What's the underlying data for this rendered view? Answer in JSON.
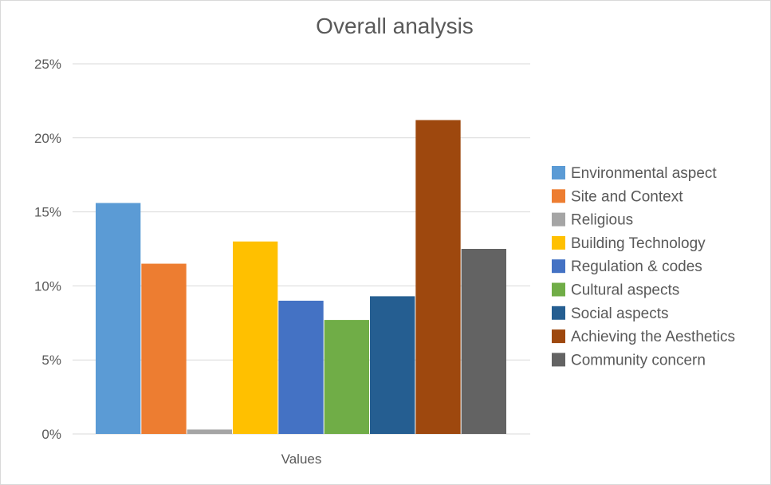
{
  "chart_data": {
    "type": "bar",
    "title": "Overall analysis",
    "categories": [
      "Values"
    ],
    "xlabel": "",
    "ylabel": "",
    "ylim": [
      0,
      25
    ],
    "yticks": [
      0,
      5,
      10,
      15,
      20,
      25
    ],
    "ytick_labels": [
      "0%",
      "5%",
      "10%",
      "15%",
      "20%",
      "25%"
    ],
    "grid": true,
    "legend_position": "right",
    "series": [
      {
        "name": "Environmental aspect",
        "values": [
          15.6
        ],
        "color": "#5B9BD5"
      },
      {
        "name": "Site and Context",
        "values": [
          11.5
        ],
        "color": "#ED7D31"
      },
      {
        "name": "Religious",
        "values": [
          0.3
        ],
        "color": "#A5A5A5"
      },
      {
        "name": "Building Technology",
        "values": [
          13.0
        ],
        "color": "#FFC000"
      },
      {
        "name": "Regulation & codes",
        "values": [
          9.0
        ],
        "color": "#4472C4"
      },
      {
        "name": "Cultural aspects",
        "values": [
          7.7
        ],
        "color": "#70AD47"
      },
      {
        "name": "Social aspects",
        "values": [
          9.3
        ],
        "color": "#255E91"
      },
      {
        "name": "Achieving the Aesthetics",
        "values": [
          21.2
        ],
        "color": "#9E480E"
      },
      {
        "name": "Community concern",
        "values": [
          12.5
        ],
        "color": "#636363"
      }
    ]
  }
}
